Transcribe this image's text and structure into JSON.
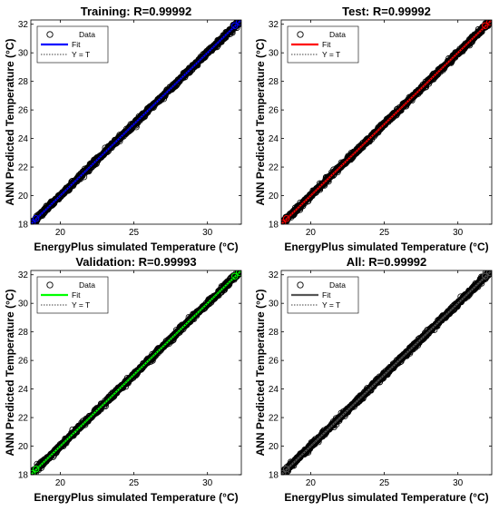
{
  "chart_data": [
    {
      "type": "scatter",
      "title": "Training: R=0.99992",
      "xlabel": "EnergyPlus simulated Temperature (°C)",
      "ylabel": "ANN Predicted Temperature (°C)",
      "xlim": [
        18,
        32.3
      ],
      "ylim": [
        18,
        32.3
      ],
      "xticks": [
        20,
        25,
        30
      ],
      "yticks": [
        18,
        20,
        22,
        24,
        26,
        28,
        30,
        32
      ],
      "grid": false,
      "legend": "top-left",
      "fit_color": "#0000ff",
      "series": [
        {
          "name": "Data",
          "kind": "markers",
          "x_range": [
            18.1,
            32.2
          ],
          "r": 0.99992
        },
        {
          "name": "Fit",
          "kind": "line",
          "slope": 1,
          "intercept": 0
        },
        {
          "name": "Y = T",
          "kind": "dotted-line",
          "slope": 1,
          "intercept": 0
        }
      ]
    },
    {
      "type": "scatter",
      "title": "Test: R=0.99992",
      "xlabel": "EnergyPlus simulated Temperature (°C)",
      "ylabel": "ANN Predicted Temperature (°C)",
      "xlim": [
        18,
        32.3
      ],
      "ylim": [
        18,
        32.3
      ],
      "xticks": [
        20,
        25,
        30
      ],
      "yticks": [
        18,
        20,
        22,
        24,
        26,
        28,
        30,
        32
      ],
      "grid": false,
      "legend": "top-left",
      "fit_color": "#ff0000",
      "series": [
        {
          "name": "Data",
          "kind": "markers",
          "x_range": [
            18.1,
            32.2
          ],
          "r": 0.99992
        },
        {
          "name": "Fit",
          "kind": "line",
          "slope": 1,
          "intercept": 0
        },
        {
          "name": "Y = T",
          "kind": "dotted-line",
          "slope": 1,
          "intercept": 0
        }
      ]
    },
    {
      "type": "scatter",
      "title": "Validation: R=0.99993",
      "xlabel": "EnergyPlus simulated Temperature (°C)",
      "ylabel": "ANN Predicted Temperature (°C)",
      "xlim": [
        18,
        32.3
      ],
      "ylim": [
        18,
        32.3
      ],
      "xticks": [
        20,
        25,
        30
      ],
      "yticks": [
        18,
        20,
        22,
        24,
        26,
        28,
        30,
        32
      ],
      "grid": false,
      "legend": "top-left",
      "fit_color": "#00ff00",
      "series": [
        {
          "name": "Data",
          "kind": "markers",
          "x_range": [
            18.1,
            32.2
          ],
          "r": 0.99993
        },
        {
          "name": "Fit",
          "kind": "line",
          "slope": 1,
          "intercept": 0
        },
        {
          "name": "Y = T",
          "kind": "dotted-line",
          "slope": 1,
          "intercept": 0
        }
      ]
    },
    {
      "type": "scatter",
      "title": "All: R=0.99992",
      "xlabel": "EnergyPlus simulated Temperature (°C)",
      "ylabel": "ANN Predicted Temperature (°C)",
      "xlim": [
        18,
        32.3
      ],
      "ylim": [
        18,
        32.3
      ],
      "xticks": [
        20,
        25,
        30
      ],
      "yticks": [
        18,
        20,
        22,
        24,
        26,
        28,
        30,
        32
      ],
      "grid": false,
      "legend": "top-left",
      "fit_color": "#555555",
      "series": [
        {
          "name": "Data",
          "kind": "markers",
          "x_range": [
            18.1,
            32.2
          ],
          "r": 0.99992
        },
        {
          "name": "Fit",
          "kind": "line",
          "slope": 1,
          "intercept": 0
        },
        {
          "name": "Y = T",
          "kind": "dotted-line",
          "slope": 1,
          "intercept": 0
        }
      ]
    }
  ]
}
